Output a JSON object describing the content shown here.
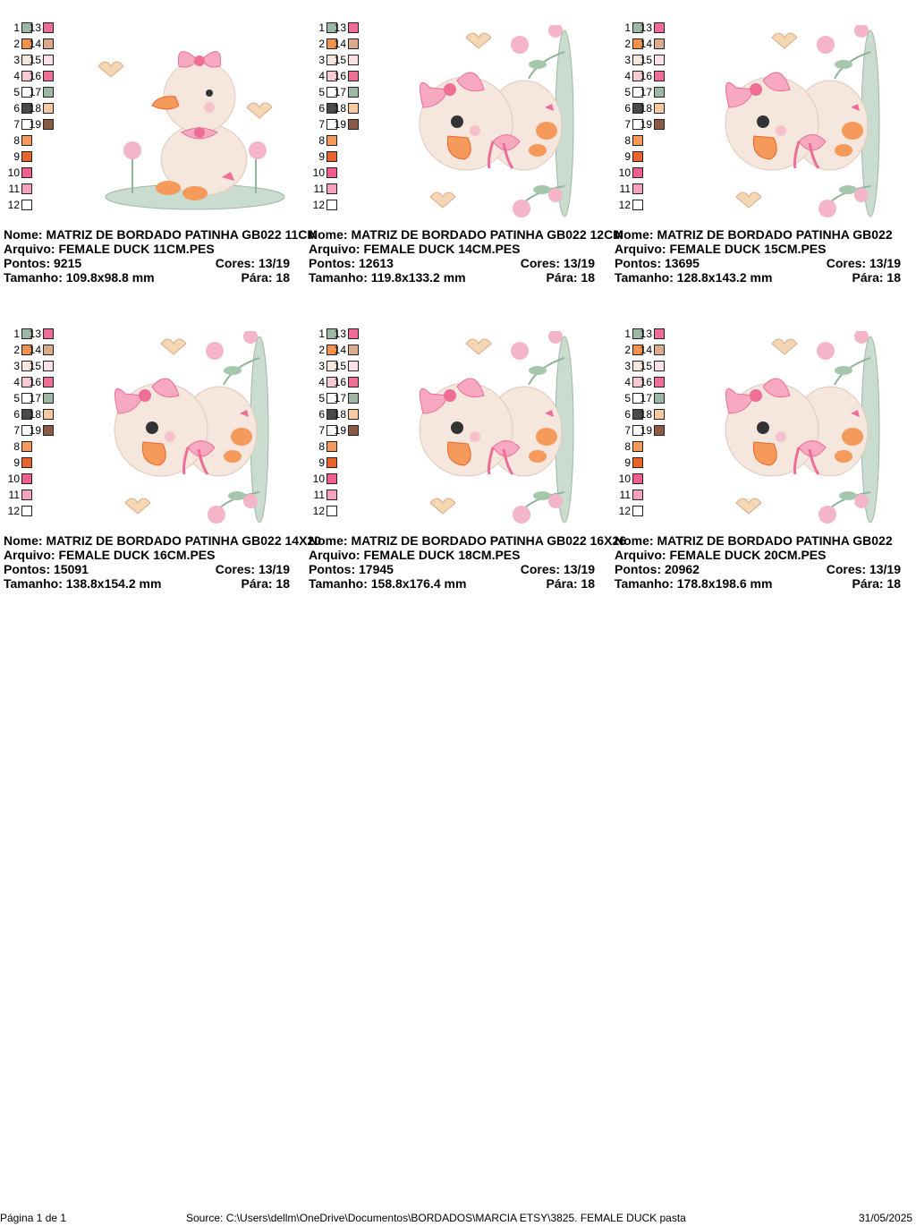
{
  "palette_colors": {
    "1": "#9fb8a6",
    "2": "#f2924f",
    "3": "#f6e7dc",
    "4": "#f7cbd4",
    "5": "#ffffff",
    "6": "#4a4a4a",
    "7": "#ffffff",
    "8": "#f59a5a",
    "9": "#e9642d",
    "10": "#ef5f8e",
    "11": "#f3a3bf",
    "12": "#ffffff",
    "13": "#ee6c97",
    "14": "#d9aa8c",
    "15": "#fbe0e5",
    "16": "#ef6e96",
    "17": "#9fb8a6",
    "18": "#f6c9a0",
    "19": "#8b5a45"
  },
  "labels": {
    "nome": "Nome:",
    "arquivo": "Arquivo:",
    "pontos": "Pontos:",
    "cores": "Cores:",
    "tamanho": "Tamanho:",
    "para": "Pára:"
  },
  "designs": [
    {
      "nome": "MATRIZ DE BORDADO PATINHA GB022 11CM",
      "arquivo": "FEMALE DUCK 11CM.PES",
      "pontos": "9215",
      "cores": "13/19",
      "tamanho": "109.8x98.8 mm",
      "para": "18"
    },
    {
      "nome": "MATRIZ DE BORDADO PATINHA GB022 12CM",
      "arquivo": "FEMALE DUCK 14CM.PES",
      "pontos": "12613",
      "cores": "13/19",
      "tamanho": "119.8x133.2 mm",
      "para": "18"
    },
    {
      "nome": "MATRIZ DE BORDADO PATINHA GB022",
      "arquivo": "FEMALE DUCK 15CM.PES",
      "pontos": "13695",
      "cores": "13/19",
      "tamanho": "128.8x143.2 mm",
      "para": "18"
    },
    {
      "nome": "MATRIZ DE BORDADO PATINHA GB022 14X20",
      "arquivo": "FEMALE DUCK 16CM.PES",
      "pontos": "15091",
      "cores": "13/19",
      "tamanho": "138.8x154.2 mm",
      "para": "18"
    },
    {
      "nome": "MATRIZ DE BORDADO PATINHA GB022 16X26",
      "arquivo": "FEMALE DUCK 18CM.PES",
      "pontos": "17945",
      "cores": "13/19",
      "tamanho": "158.8x176.4 mm",
      "para": "18"
    },
    {
      "nome": "MATRIZ DE BORDADO PATINHA GB022",
      "arquivo": "FEMALE DUCK 20CM.PES",
      "pontos": "20962",
      "cores": "13/19",
      "tamanho": "178.8x198.6 mm",
      "para": "18"
    }
  ],
  "footer": {
    "page": "Página 1 de 1",
    "source": "Source: C:\\Users\\dellm\\OneDrive\\Documentos\\BORDADOS\\MARCIA ETSY\\3825. FEMALE DUCK pasta",
    "date": "31/05/2025"
  }
}
